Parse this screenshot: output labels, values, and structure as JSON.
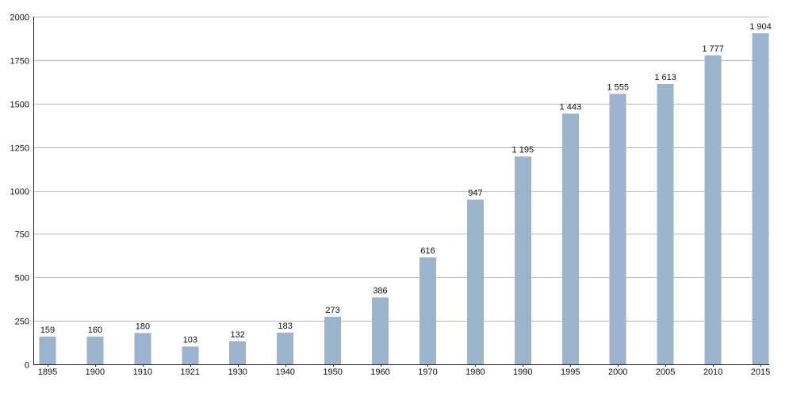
{
  "chart_data": {
    "type": "bar",
    "categories": [
      "1895",
      "1900",
      "1910",
      "1921",
      "1930",
      "1940",
      "1950",
      "1960",
      "1970",
      "1980",
      "1990",
      "1995",
      "2000",
      "2005",
      "2010",
      "2015"
    ],
    "values": [
      159,
      160,
      180,
      103,
      132,
      183,
      273,
      386,
      616,
      947,
      1195,
      1443,
      1555,
      1613,
      1777,
      1904
    ],
    "data_labels": [
      "159",
      "160",
      "180",
      "103",
      "132",
      "183",
      "273",
      "386",
      "616",
      "947",
      "1 195",
      "1 443",
      "1 555",
      "1 613",
      "1 777",
      "1 904"
    ],
    "yticks": [
      0,
      250,
      500,
      750,
      1000,
      1250,
      1500,
      1750,
      2000
    ],
    "ylim": [
      0,
      2000
    ],
    "title": "",
    "xlabel": "",
    "ylabel": "",
    "grid": true,
    "legend": "none",
    "colors": {
      "bar": "#9bb3cc",
      "grid": "#b8b8b8",
      "axis": "#222222",
      "text": "#111111"
    }
  }
}
